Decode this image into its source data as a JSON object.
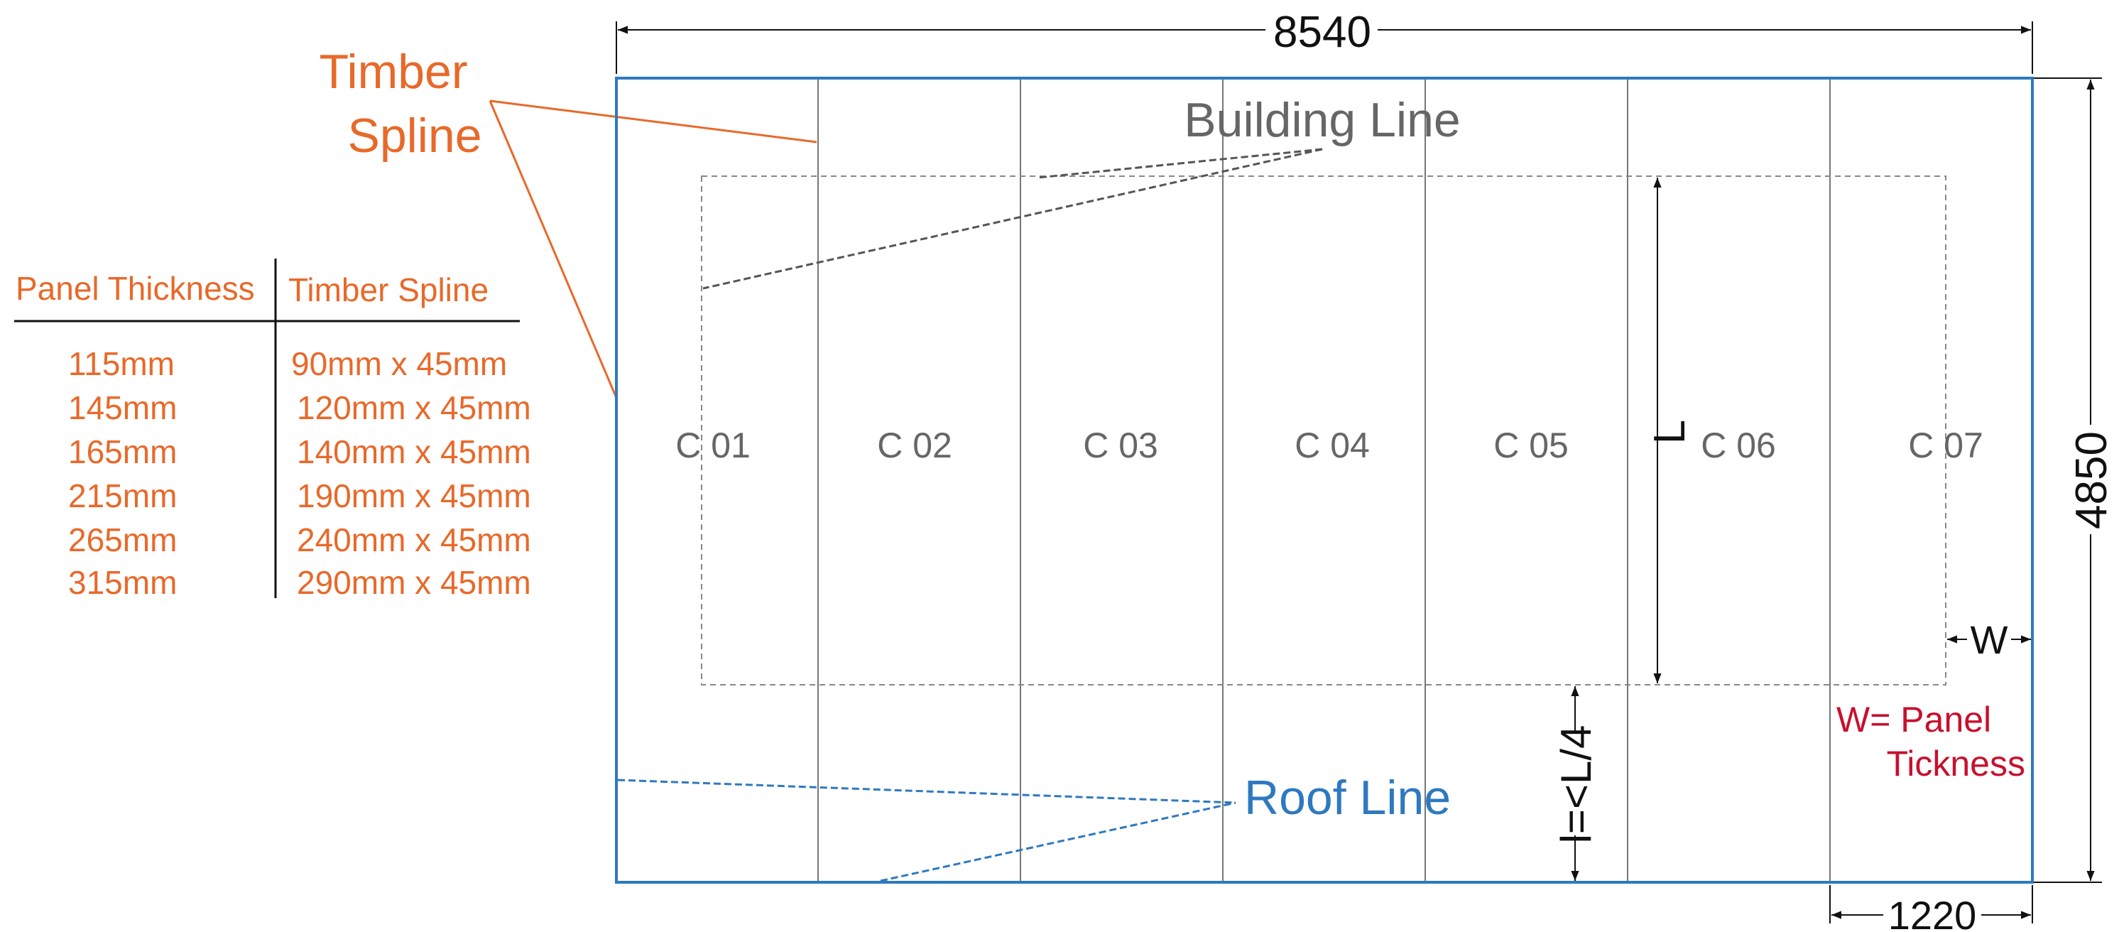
{
  "dimensions": {
    "overall_width": "8540",
    "overall_height": "4850",
    "panel_width": "1220",
    "panel_length_label": "L",
    "overhang_label": "l=<L/4",
    "spline_width_label": "W"
  },
  "labels": {
    "timber_spline_line1": "Timber",
    "timber_spline_line2": "Spline",
    "building_line": "Building Line",
    "roof_line": "Roof Line",
    "w_note_line1": "W= Panel",
    "w_note_line2": "Tickness"
  },
  "panels": [
    "C 01",
    "C 02",
    "C 03",
    "C 04",
    "C 05",
    "C 06",
    "C 07"
  ],
  "spec_table": {
    "headers": [
      "Panel Thickness",
      "Timber Spline"
    ],
    "rows": [
      [
        "115mm",
        "90mm x 45mm"
      ],
      [
        "145mm",
        "120mm x 45mm"
      ],
      [
        "165mm",
        "140mm x 45mm"
      ],
      [
        "215mm",
        "190mm x 45mm"
      ],
      [
        "265mm",
        "240mm x 45mm"
      ],
      [
        "315mm",
        "290mm x 45mm"
      ]
    ]
  },
  "colors": {
    "orange": "#e8692a",
    "blue": "#2e79c0",
    "gray": "#666666",
    "red": "#c8102e",
    "black": "#111111"
  }
}
